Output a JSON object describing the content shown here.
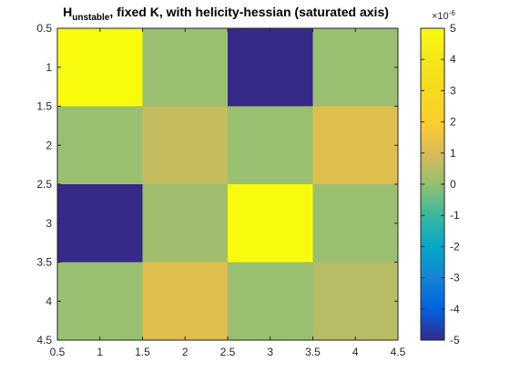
{
  "chart_data": {
    "type": "heatmap",
    "title_main": "H",
    "title_sub": "unstable",
    "title_rest": ", fixed K, with helicity-hessian (saturated axis)",
    "x_ticks": [
      "0.5",
      "1",
      "1.5",
      "2",
      "2.5",
      "3",
      "3.5",
      "4",
      "4.5"
    ],
    "y_ticks": [
      "0.5",
      "1",
      "1.5",
      "2",
      "2.5",
      "3",
      "3.5",
      "4",
      "4.5"
    ],
    "xlim": [
      0.5,
      4.5
    ],
    "ylim": [
      0.5,
      4.5
    ],
    "y_direction": "reverse",
    "matrix": [
      [
        5.0,
        0.1,
        -5.0,
        0.1
      ],
      [
        0.1,
        0.7,
        0.1,
        1.2
      ],
      [
        -5.0,
        0.2,
        5.0,
        0.1
      ],
      [
        0.1,
        1.2,
        0.1,
        0.5
      ]
    ],
    "clim": [
      -5,
      5
    ],
    "colorbar": {
      "ticks": [
        "5",
        "4",
        "3",
        "2",
        "1",
        "0",
        "-1",
        "-2",
        "-3",
        "-4",
        "-5"
      ],
      "exponent_base": "×10",
      "exponent_power": "-6"
    },
    "colormap": "parula"
  }
}
